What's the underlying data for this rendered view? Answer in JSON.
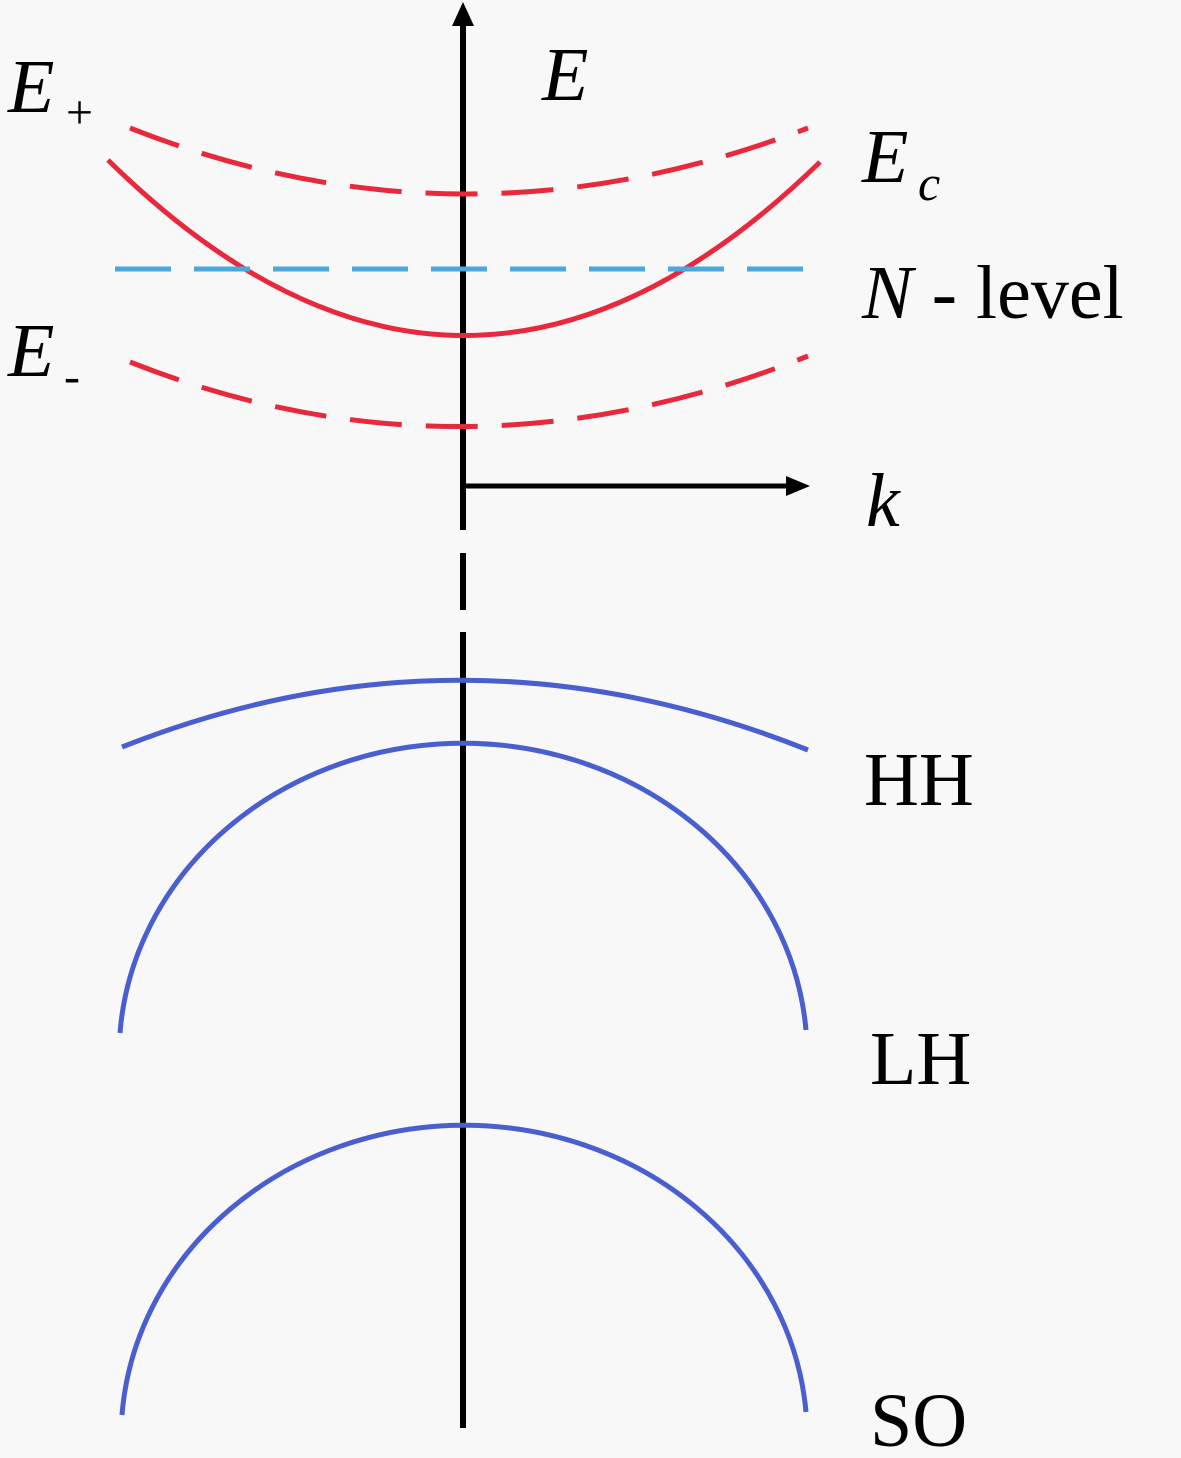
{
  "labels": {
    "energy_axis": "E",
    "k_axis": "k",
    "e_plus_base": "E",
    "e_plus_sub": "+",
    "e_minus_base": "E",
    "e_minus_sub": "-",
    "ec_base": "E",
    "ec_sub": "c",
    "n_level_italic": "N",
    "n_level_rest": " - level",
    "hh": "HH",
    "lh": "LH",
    "so": "SO"
  },
  "colors": {
    "conduction": "#e8283c",
    "n_level": "#4aa8e0",
    "valence": "#4a5fcf",
    "axis": "#000000",
    "background": "#f8f8f8"
  }
}
